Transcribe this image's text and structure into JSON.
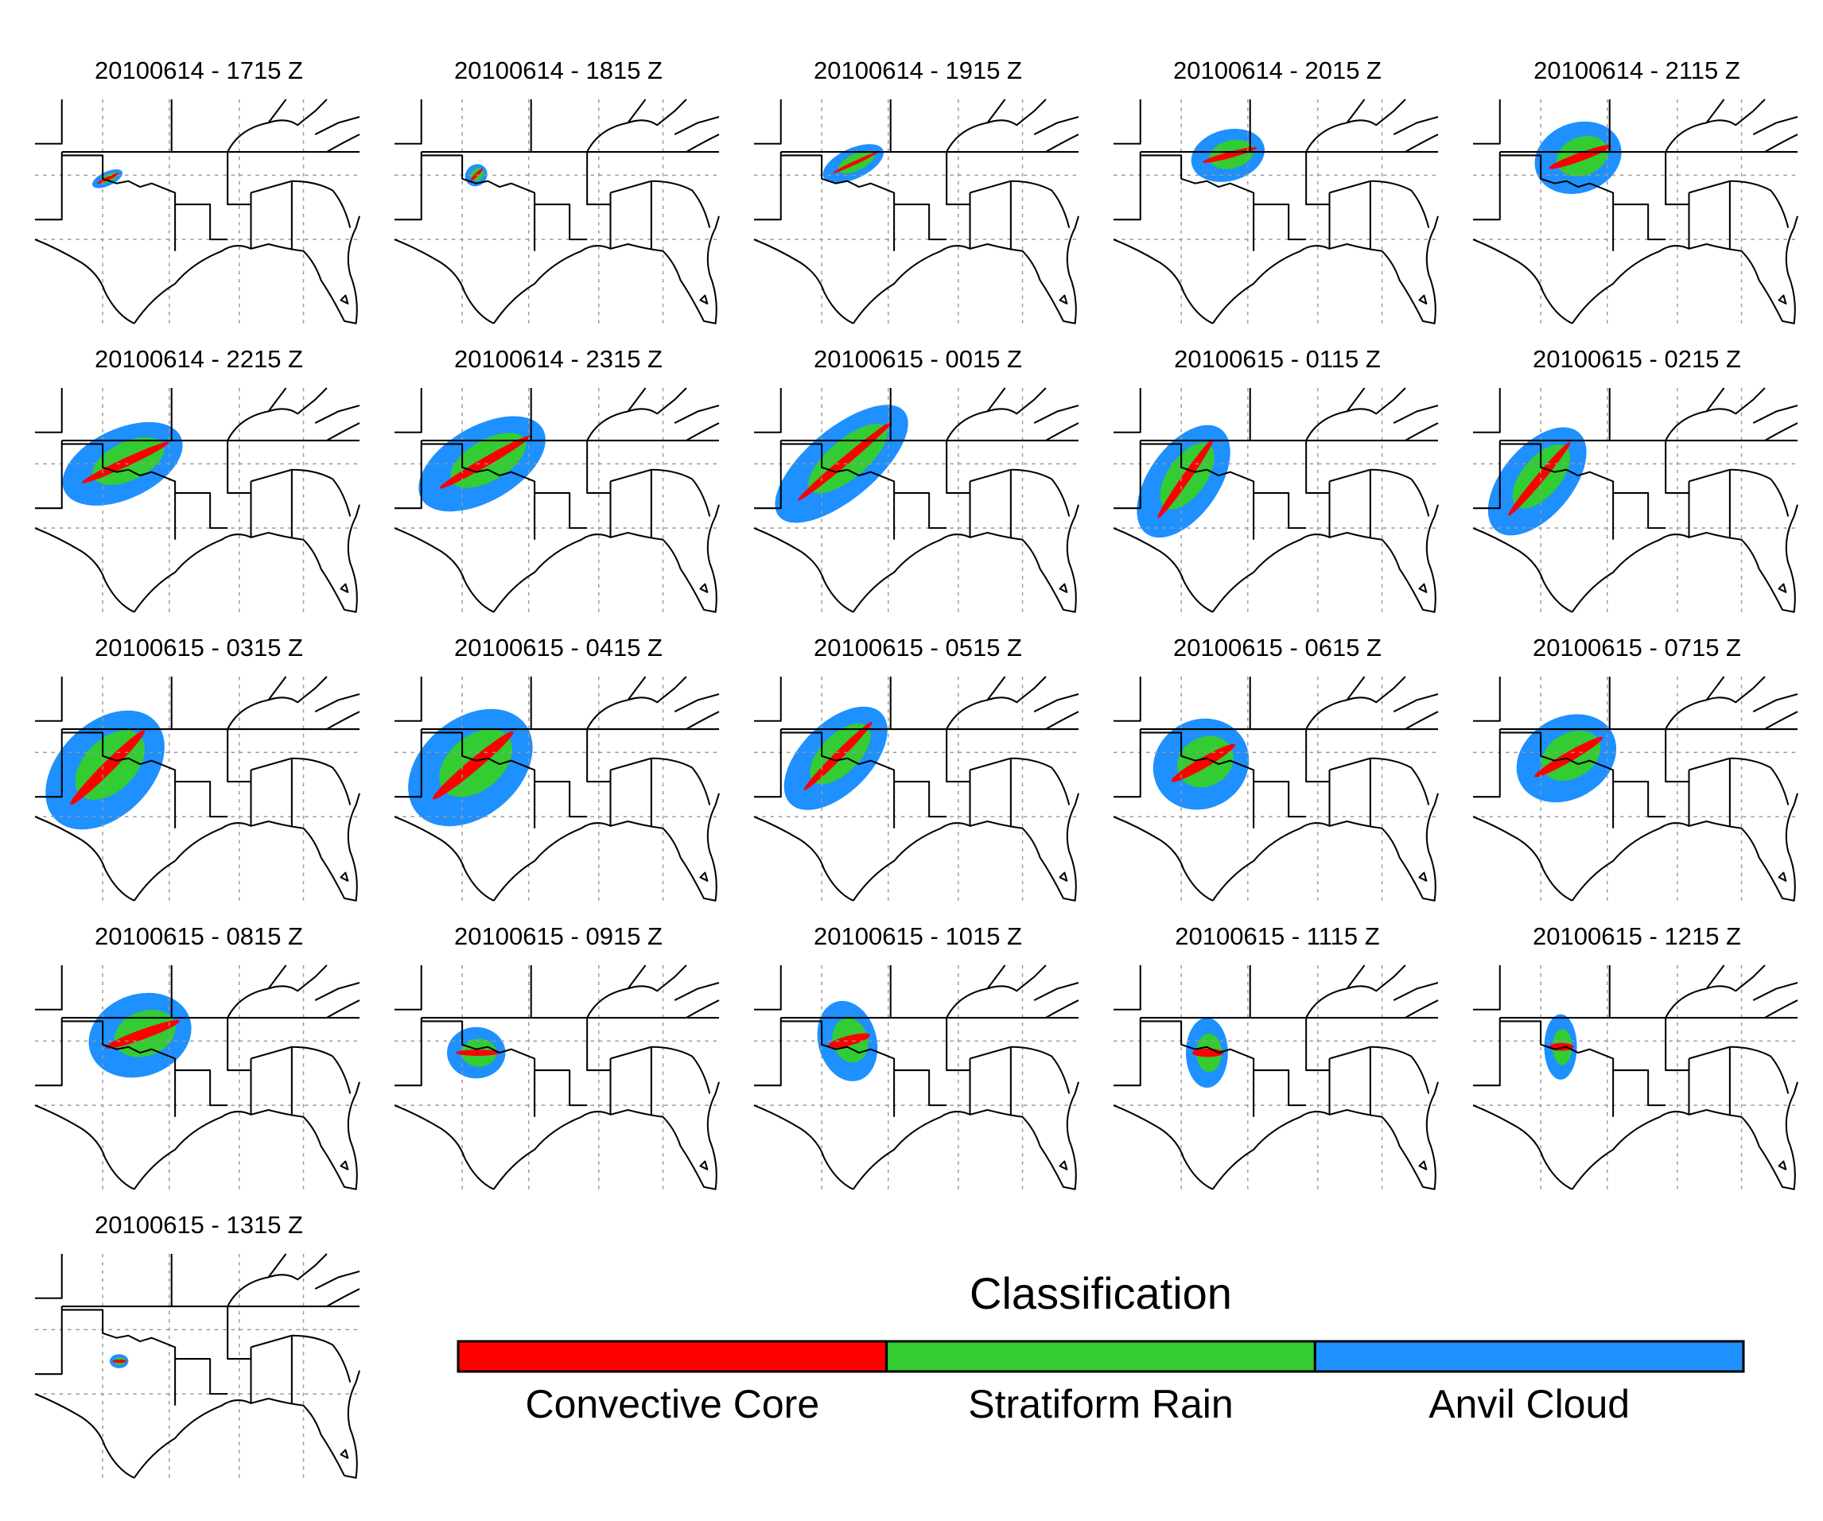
{
  "panels": [
    {
      "title": "20100614 - 1715 Z"
    },
    {
      "title": "20100614 - 1815 Z"
    },
    {
      "title": "20100614 - 1915 Z"
    },
    {
      "title": "20100614 - 2015 Z"
    },
    {
      "title": "20100614 - 2115 Z"
    },
    {
      "title": "20100614 - 2215 Z"
    },
    {
      "title": "20100614 - 2315 Z"
    },
    {
      "title": "20100615 - 0015 Z"
    },
    {
      "title": "20100615 - 0115 Z"
    },
    {
      "title": "20100615 - 0215 Z"
    },
    {
      "title": "20100615 - 0315 Z"
    },
    {
      "title": "20100615 - 0415 Z"
    },
    {
      "title": "20100615 - 0515 Z"
    },
    {
      "title": "20100615 - 0615 Z"
    },
    {
      "title": "20100615 - 0715 Z"
    },
    {
      "title": "20100615 - 0815 Z"
    },
    {
      "title": "20100615 - 0915 Z"
    },
    {
      "title": "20100615 - 1015 Z"
    },
    {
      "title": "20100615 - 1115 Z"
    },
    {
      "title": "20100615 - 1215 Z"
    },
    {
      "title": "20100615 - 1315 Z"
    }
  ],
  "legend": {
    "title": "Classification",
    "items": [
      {
        "label": "Convective Core",
        "color": "#ff0000"
      },
      {
        "label": "Stratiform Rain",
        "color": "#33cc33"
      },
      {
        "label": "Anvil Cloud",
        "color": "#1e90ff"
      }
    ]
  }
}
